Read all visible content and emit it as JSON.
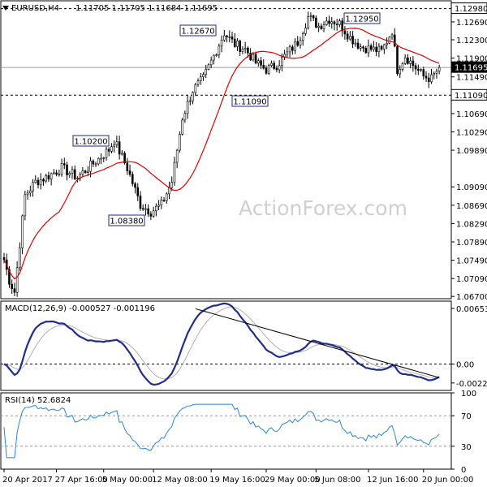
{
  "title": {
    "symbol": "EURUSD,H4",
    "ohlc": "1.11705 1.11705 1.11684 1.11695"
  },
  "watermark": "ActionForex.com",
  "colors": {
    "candle": "#000000",
    "ma": "#e00000",
    "macd": "#1f2d8c",
    "signal": "#b0b0b0",
    "rsi": "#2a86d8",
    "trendline": "#000000"
  },
  "chart_data": [
    {
      "type": "candlestick",
      "name": "price",
      "ylim": [
        1.0665,
        1.1315
      ],
      "yticks": [
        "1.12690",
        "1.12300",
        "1.11900",
        "1.11490",
        "1.11090",
        "1.10690",
        "1.10290",
        "1.09890",
        "1.09090",
        "1.08690",
        "1.08290",
        "1.07890",
        "1.07490",
        "1.07090",
        "1.06700"
      ],
      "ytick_values": [
        1.1269,
        1.123,
        1.119,
        1.1149,
        1.1109,
        1.1069,
        1.1029,
        1.0989,
        1.0909,
        1.0869,
        1.0829,
        1.0789,
        1.0749,
        1.0709,
        1.067
      ],
      "hlines": [
        {
          "label": "1.12980",
          "value": 1.1298
        },
        {
          "label": "1.11695",
          "value": 1.11695
        },
        {
          "label": "1.11090",
          "value": 1.1109
        }
      ],
      "annotations": [
        {
          "label": "1.10200",
          "value": 1.102
        },
        {
          "label": "1.08380",
          "value": 1.0838
        },
        {
          "label": "1.12670",
          "value": 1.1267
        },
        {
          "label": "1.11090",
          "value": 1.1109
        },
        {
          "label": "1.12950",
          "value": 1.1295
        }
      ],
      "close_anchors": [
        [
          0,
          1.075
        ],
        [
          2,
          1.0705
        ],
        [
          4,
          1.068
        ],
        [
          8,
          1.089
        ],
        [
          12,
          1.092
        ],
        [
          16,
          1.093
        ],
        [
          22,
          1.095
        ],
        [
          28,
          1.093
        ],
        [
          34,
          1.096
        ],
        [
          40,
          1.099
        ],
        [
          42,
          1.101
        ],
        [
          47,
          1.095
        ],
        [
          52,
          1.087
        ],
        [
          56,
          1.0855
        ],
        [
          60,
          1.087
        ],
        [
          64,
          1.092
        ],
        [
          68,
          1.106
        ],
        [
          72,
          1.112
        ],
        [
          76,
          1.1145
        ],
        [
          80,
          1.1195
        ],
        [
          84,
          1.1245
        ],
        [
          88,
          1.122
        ],
        [
          92,
          1.121
        ],
        [
          96,
          1.118
        ],
        [
          100,
          1.1165
        ],
        [
          104,
          1.1175
        ],
        [
          108,
          1.12
        ],
        [
          112,
          1.1225
        ],
        [
          116,
          1.128
        ],
        [
          120,
          1.126
        ],
        [
          124,
          1.1275
        ],
        [
          128,
          1.1265
        ],
        [
          132,
          1.1235
        ],
        [
          136,
          1.1215
        ],
        [
          140,
          1.121
        ],
        [
          144,
          1.1205
        ],
        [
          148,
          1.125
        ],
        [
          150,
          1.1165
        ],
        [
          153,
          1.1195
        ],
        [
          156,
          1.1175
        ],
        [
          160,
          1.115
        ],
        [
          163,
          1.1145
        ],
        [
          166,
          1.11695
        ]
      ]
    },
    {
      "type": "line",
      "name": "MACD(12,26,9)",
      "label_text": "MACD(12,26,9) -0.000527 -0.001196",
      "ylim": [
        -0.0031,
        0.0074
      ],
      "yticks": [
        "0.006534",
        "0.00",
        "-0.002226"
      ],
      "ytick_values": [
        0.006534,
        0,
        -0.002226
      ],
      "hline": 0,
      "trendline": [
        [
          73,
          0.0065
        ],
        [
          166,
          -0.0016
        ]
      ]
    },
    {
      "type": "line",
      "name": "RSI(14)",
      "label_text": "RSI(14) 52.6824",
      "ylim": [
        0,
        100
      ],
      "yticks": [
        "100",
        "70",
        "30",
        "0"
      ],
      "ytick_values": [
        100,
        70,
        30,
        0
      ],
      "hlines": [
        70,
        30
      ]
    }
  ],
  "x_axis": {
    "labels": [
      {
        "text": "20 Apr 2017",
        "bar": 0
      },
      {
        "text": "27 Apr 16:00",
        "bar": 20
      },
      {
        "text": "5 May 00:00",
        "bar": 38
      },
      {
        "text": "12 May 08:00",
        "bar": 57
      },
      {
        "text": "19 May 16:00",
        "bar": 79
      },
      {
        "text": "29 May 00:00",
        "bar": 100
      },
      {
        "text": "5 Jun 08:00",
        "bar": 119
      },
      {
        "text": "12 Jun 16:00",
        "bar": 139
      },
      {
        "text": "20 Jun 00:00",
        "bar": 160
      }
    ]
  }
}
